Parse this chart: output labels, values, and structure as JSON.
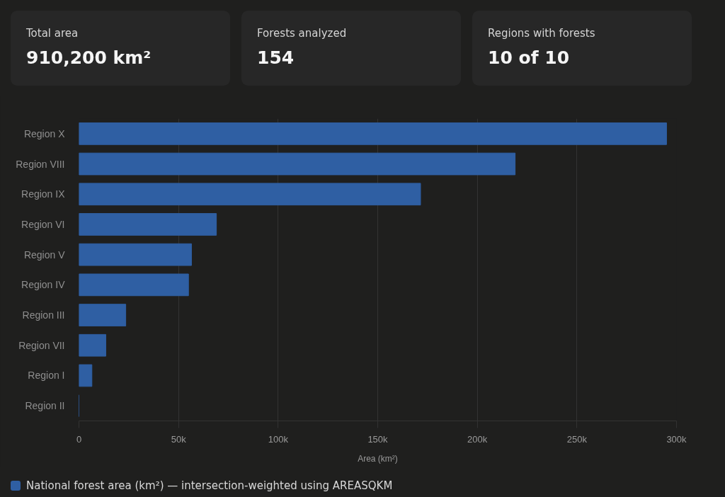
{
  "chart_data": [
    {
      "type": "other",
      "annotations": [
        "Total area",
        "910,200 km²",
        "Forests analyzed",
        "154",
        "Regions with forests",
        "10 of 10"
      ]
    },
    {
      "type": "bar",
      "orientation": "horizontal",
      "categories": [
        "Region X",
        "Region VIII",
        "Region IX",
        "Region VI",
        "Region V",
        "Region IV",
        "Region III",
        "Region VII",
        "Region I",
        "Region II"
      ],
      "series": [
        {
          "name": "National forest area (km²) — intersection-weighted using AREASQKM",
          "color": "#2f5fa3",
          "values": [
            295000,
            219000,
            171500,
            69000,
            56500,
            55000,
            23500,
            13500,
            6500,
            0
          ]
        }
      ],
      "xlabel": "Area (km²)",
      "xlim": [
        0,
        300000
      ],
      "xticks": [
        0,
        {
          "value": 50000,
          "label": "50k"
        },
        {
          "value": 100000,
          "label": "100k"
        },
        {
          "value": 150000,
          "label": "150k"
        },
        {
          "value": 200000,
          "label": "200k"
        },
        {
          "value": 250000,
          "label": "250k"
        },
        {
          "value": 300000,
          "label": "300k"
        }
      ],
      "grid": "x",
      "legend": "bottom left"
    }
  ]
}
